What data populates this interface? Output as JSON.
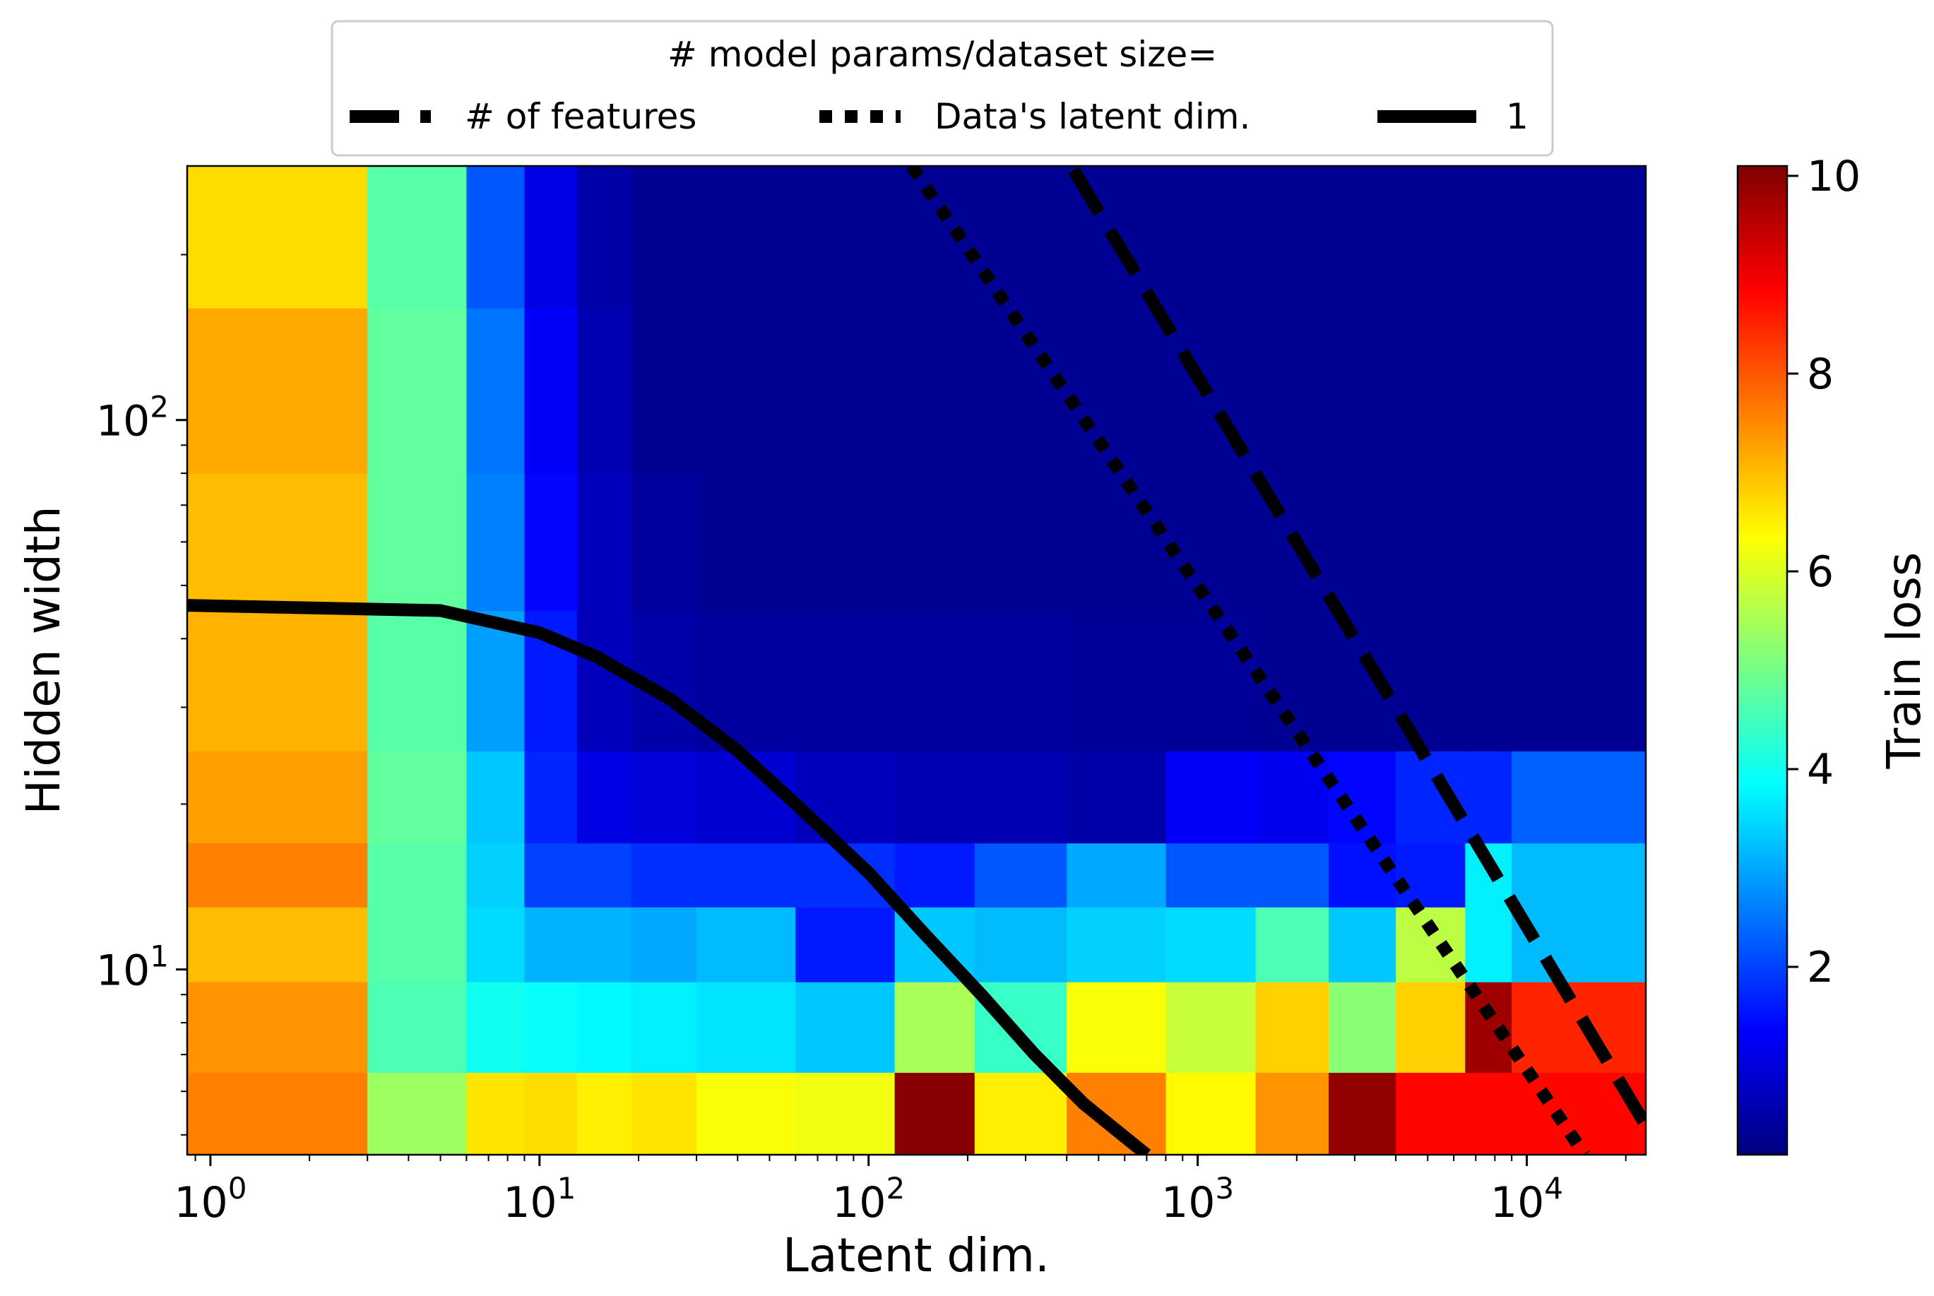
{
  "chart_data": {
    "type": "heatmap",
    "xlabel": "Latent dim.",
    "ylabel": "Hidden width",
    "x_scale": "log",
    "y_scale": "log",
    "xlim": [
      0.85,
      23000
    ],
    "ylim": [
      4.6,
      290
    ],
    "x_ticks": [
      {
        "value": 1,
        "base": "10",
        "exp": "0"
      },
      {
        "value": 10,
        "base": "10",
        "exp": "1"
      },
      {
        "value": 100,
        "base": "10",
        "exp": "2"
      },
      {
        "value": 1000,
        "base": "10",
        "exp": "3"
      },
      {
        "value": 10000,
        "base": "10",
        "exp": "4"
      }
    ],
    "y_ticks": [
      {
        "value": 10,
        "base": "10",
        "exp": "1"
      },
      {
        "value": 100,
        "base": "10",
        "exp": "2"
      }
    ],
    "colorbar": {
      "label": "Train loss",
      "min": 0.1,
      "max": 10.1,
      "colormap": [
        "#00007f",
        "#0000ff",
        "#007fff",
        "#00ffff",
        "#7fff7f",
        "#ffff00",
        "#ff7f00",
        "#ff0000",
        "#7f0000"
      ],
      "ticks": [
        {
          "value": 2,
          "label": "2"
        },
        {
          "value": 4,
          "label": "4"
        },
        {
          "value": 6,
          "label": "6"
        },
        {
          "value": 8,
          "label": "8"
        },
        {
          "value": 10,
          "label": "10"
        }
      ]
    },
    "cell_x_edges": [
      0.85,
      3,
      6,
      9,
      13,
      19,
      30,
      60,
      120,
      210,
      400,
      800,
      1500,
      2500,
      4000,
      6500,
      9000,
      23000
    ],
    "cell_y_edges": [
      4.6,
      6.5,
      9.5,
      13,
      17,
      25,
      45,
      80,
      160,
      290
    ],
    "cell_values": [
      [
        7.6,
        5.4,
        6.6,
        6.7,
        6.5,
        6.6,
        6.3,
        6.2,
        10.0,
        6.5,
        7.6,
        6.4,
        7.4,
        9.9,
        8.8,
        8.8,
        8.8
      ],
      [
        7.4,
        4.6,
        4.0,
        3.9,
        3.8,
        3.7,
        3.6,
        3.3,
        5.5,
        4.4,
        6.3,
        5.8,
        6.8,
        5.2,
        6.8,
        9.8,
        8.5
      ],
      [
        7.0,
        4.7,
        3.5,
        3.1,
        3.1,
        3.0,
        3.2,
        1.6,
        3.3,
        3.2,
        3.4,
        3.5,
        4.6,
        3.3,
        5.7,
        3.7,
        3.2
      ],
      [
        7.6,
        4.7,
        3.4,
        2.0,
        2.0,
        1.8,
        1.8,
        1.8,
        1.6,
        2.2,
        3.0,
        2.2,
        2.2,
        1.5,
        1.6,
        3.7,
        3.2
      ],
      [
        7.3,
        4.8,
        3.3,
        1.7,
        1.1,
        1.0,
        0.9,
        0.7,
        0.6,
        0.6,
        0.5,
        1.3,
        1.2,
        1.4,
        1.7,
        1.7,
        2.3
      ],
      [
        7.1,
        4.7,
        2.9,
        1.6,
        0.7,
        0.5,
        0.4,
        0.4,
        0.4,
        0.4,
        0.35,
        0.35,
        0.3,
        0.3,
        0.3,
        0.3,
        0.3
      ],
      [
        7.0,
        4.8,
        2.6,
        1.4,
        0.7,
        0.4,
        0.3,
        0.3,
        0.3,
        0.3,
        0.3,
        0.3,
        0.3,
        0.3,
        0.3,
        0.3,
        0.3
      ],
      [
        7.2,
        4.8,
        2.5,
        1.3,
        0.6,
        0.3,
        0.3,
        0.3,
        0.3,
        0.3,
        0.3,
        0.3,
        0.3,
        0.3,
        0.3,
        0.3,
        0.3
      ],
      [
        6.7,
        4.7,
        2.2,
        1.1,
        0.5,
        0.3,
        0.3,
        0.3,
        0.3,
        0.3,
        0.3,
        0.3,
        0.3,
        0.3,
        0.3,
        0.3,
        0.3
      ]
    ],
    "lines": [
      {
        "name": "# of features",
        "style": "dashed",
        "points": [
          [
            420,
            285
          ],
          [
            23000,
            5.2
          ]
        ]
      },
      {
        "name": "Data's latent dim.",
        "style": "dotted",
        "points": [
          [
            135,
            290
          ],
          [
            15000,
            4.6
          ]
        ]
      },
      {
        "name": "1",
        "style": "solid",
        "points": [
          [
            0.85,
            46
          ],
          [
            5,
            45
          ],
          [
            10,
            41
          ],
          [
            15,
            37
          ],
          [
            25,
            31
          ],
          [
            40,
            25
          ],
          [
            60,
            20
          ],
          [
            100,
            15
          ],
          [
            150,
            11.5
          ],
          [
            220,
            9
          ],
          [
            320,
            7
          ],
          [
            450,
            5.7
          ],
          [
            700,
            4.6
          ]
        ]
      }
    ],
    "legend": {
      "title": "# model params/dataset size=",
      "placement": "top-center, outside plot",
      "entries": [
        "# of features",
        "Data's latent dim.",
        "1"
      ]
    }
  }
}
